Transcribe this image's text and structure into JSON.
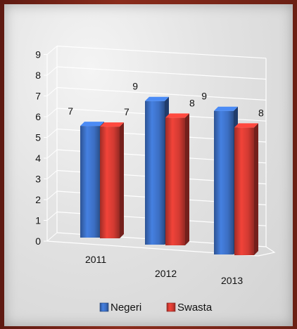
{
  "chart_data": {
    "type": "bar",
    "categories": [
      "2011",
      "2012",
      "2013"
    ],
    "series": [
      {
        "name": "Negeri",
        "values": [
          7,
          9,
          9
        ],
        "color": "#3c6fc4"
      },
      {
        "name": "Swasta",
        "values": [
          7,
          8,
          8
        ],
        "color": "#d23a32"
      }
    ],
    "data_labels": [
      [
        "7",
        "9",
        "9"
      ],
      [
        "7",
        "8",
        "8"
      ]
    ],
    "ylim": [
      0,
      9
    ],
    "yticks": [
      "0",
      "1",
      "2",
      "3",
      "4",
      "5",
      "6",
      "7",
      "8",
      "9"
    ],
    "grid": true,
    "legend_position": "bottom",
    "three_d": true
  }
}
